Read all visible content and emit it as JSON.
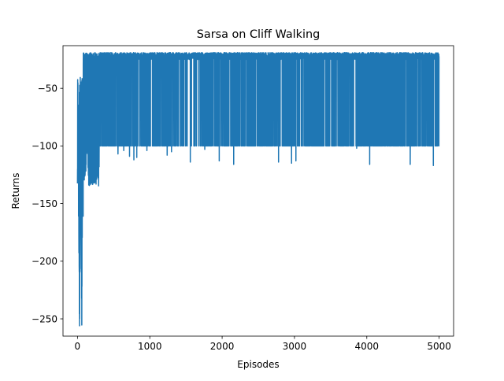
{
  "chart_data": {
    "type": "line",
    "title": "Sarsa on Cliff Walking",
    "xlabel": "Episodes",
    "ylabel": "Returns",
    "xlim": [
      -200,
      5200
    ],
    "ylim": [
      -265,
      -13
    ],
    "xticks": [
      0,
      1000,
      2000,
      3000,
      4000,
      5000
    ],
    "yticks": [
      -250,
      -200,
      -150,
      -100,
      -50
    ],
    "xtick_labels": [
      "0",
      "1000",
      "2000",
      "3000",
      "4000",
      "5000"
    ],
    "ytick_labels": [
      "−250",
      "−200",
      "−150",
      "−100",
      "−50"
    ],
    "grid": false,
    "legend": "none",
    "series": [
      {
        "color": "#1f77b4",
        "description_points": {
          "x": [
            0,
            10,
            20,
            30,
            40,
            50,
            60,
            70,
            80,
            90,
            100,
            120,
            150,
            200,
            250,
            300,
            400,
            500,
            800,
            1000,
            2000,
            3000,
            4000,
            5000
          ],
          "y": [
            -135,
            -110,
            -182,
            -255,
            -160,
            -140,
            -249,
            -120,
            -168,
            -110,
            -100,
            -150,
            -134,
            -125,
            -110,
            -102,
            -100,
            -100,
            -100,
            -100,
            -100,
            -100,
            -100,
            -100
          ]
        },
        "converged_upper": -17,
        "typical_upper": -22,
        "common_drop": -100,
        "deep_drops": [
          {
            "x": 560,
            "y": -107
          },
          {
            "x": 640,
            "y": -104
          },
          {
            "x": 720,
            "y": -109
          },
          {
            "x": 780,
            "y": -112
          },
          {
            "x": 820,
            "y": -110
          },
          {
            "x": 960,
            "y": -104
          },
          {
            "x": 1190,
            "y": -111
          },
          {
            "x": 1240,
            "y": -108
          },
          {
            "x": 1300,
            "y": -105
          },
          {
            "x": 1560,
            "y": -114
          },
          {
            "x": 1760,
            "y": -103
          },
          {
            "x": 1960,
            "y": -113
          },
          {
            "x": 2160,
            "y": -116
          },
          {
            "x": 2750,
            "y": -110
          },
          {
            "x": 2780,
            "y": -114
          },
          {
            "x": 2960,
            "y": -115
          },
          {
            "x": 3020,
            "y": -113
          },
          {
            "x": 3860,
            "y": -102
          },
          {
            "x": 4040,
            "y": -116
          },
          {
            "x": 4600,
            "y": -116
          },
          {
            "x": 4920,
            "y": -117
          }
        ]
      }
    ]
  }
}
